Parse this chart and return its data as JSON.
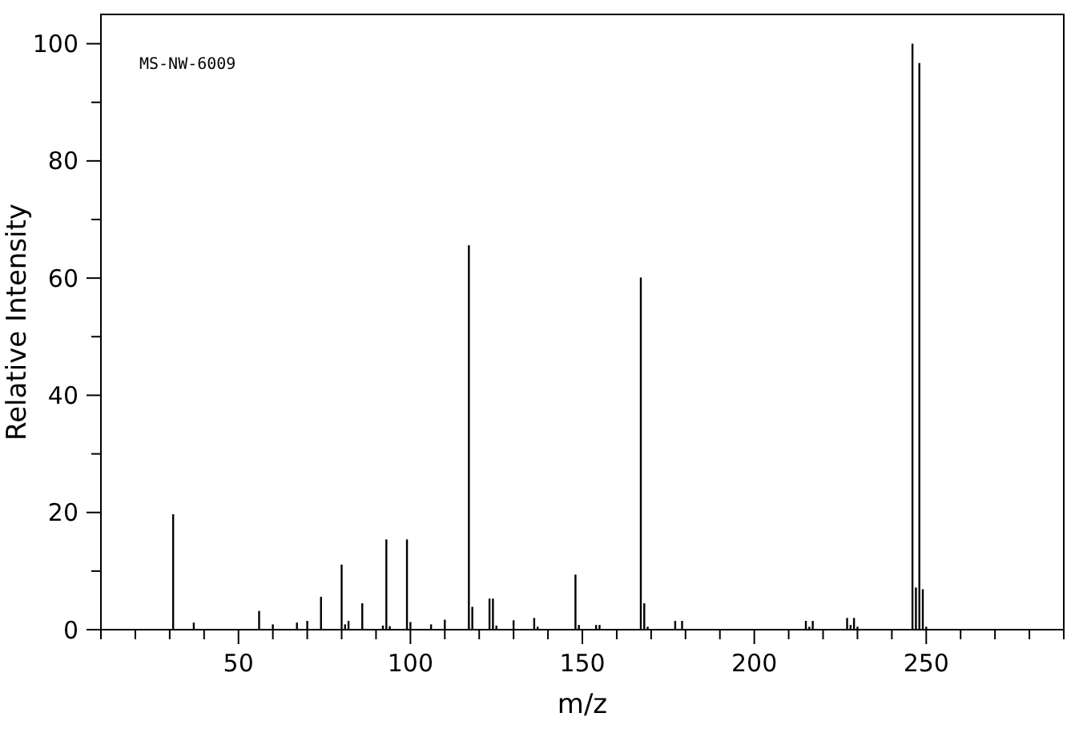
{
  "chart_data": {
    "type": "bar",
    "xlabel": "m/z",
    "ylabel": "Relative Intensity",
    "annotations": [
      "MS-NW-6009"
    ],
    "x": [
      31,
      37,
      56,
      60,
      67,
      70,
      74,
      80,
      81,
      82,
      86,
      92,
      93,
      94,
      99,
      100,
      106,
      110,
      117,
      118,
      123,
      124,
      125,
      130,
      136,
      137,
      148,
      149,
      154,
      155,
      167,
      168,
      169,
      177,
      179,
      215,
      216,
      217,
      227,
      228,
      229,
      230,
      246,
      247,
      248,
      249,
      250
    ],
    "values": [
      19.7,
      1.2,
      3.2,
      0.9,
      1.2,
      1.5,
      5.6,
      11.1,
      0.9,
      1.5,
      4.5,
      0.7,
      15.4,
      0.6,
      15.4,
      1.3,
      0.9,
      1.7,
      65.6,
      3.9,
      5.3,
      5.3,
      0.7,
      1.6,
      2.0,
      0.5,
      9.4,
      0.8,
      0.8,
      0.8,
      60.1,
      4.5,
      0.5,
      1.5,
      1.5,
      1.5,
      0.5,
      1.5,
      2.0,
      0.8,
      2.0,
      0.5,
      100,
      7.2,
      96.7,
      6.9,
      0.5
    ],
    "color": "#000000",
    "xlim": [
      10,
      290
    ],
    "xticks": [
      {
        "value": 10,
        "label": null
      },
      {
        "value": 20,
        "label": null
      },
      {
        "value": 30,
        "label": null
      },
      {
        "value": 40,
        "label": null
      },
      50,
      {
        "value": 60,
        "label": null
      },
      {
        "value": 70,
        "label": null
      },
      {
        "value": 80,
        "label": null
      },
      {
        "value": 90,
        "label": null
      },
      100,
      {
        "value": 110,
        "label": null
      },
      {
        "value": 120,
        "label": null
      },
      {
        "value": 130,
        "label": null
      },
      {
        "value": 140,
        "label": null
      },
      150,
      {
        "value": 160,
        "label": null
      },
      {
        "value": 170,
        "label": null
      },
      {
        "value": 180,
        "label": null
      },
      {
        "value": 190,
        "label": null
      },
      200,
      {
        "value": 210,
        "label": null
      },
      {
        "value": 220,
        "label": null
      },
      {
        "value": 230,
        "label": null
      },
      {
        "value": 240,
        "label": null
      },
      250,
      {
        "value": 260,
        "label": null
      },
      {
        "value": 270,
        "label": null
      },
      {
        "value": 280,
        "label": null
      },
      {
        "value": 290,
        "label": null
      }
    ],
    "ylim": [
      0,
      105
    ],
    "yticks": [
      0,
      {
        "value": 10,
        "label": null
      },
      20,
      {
        "value": 30,
        "label": null
      },
      40,
      {
        "value": 50,
        "label": null
      },
      60,
      {
        "value": 70,
        "label": null
      },
      80,
      {
        "value": 90,
        "label": null
      },
      100
    ],
    "grid": false
  }
}
